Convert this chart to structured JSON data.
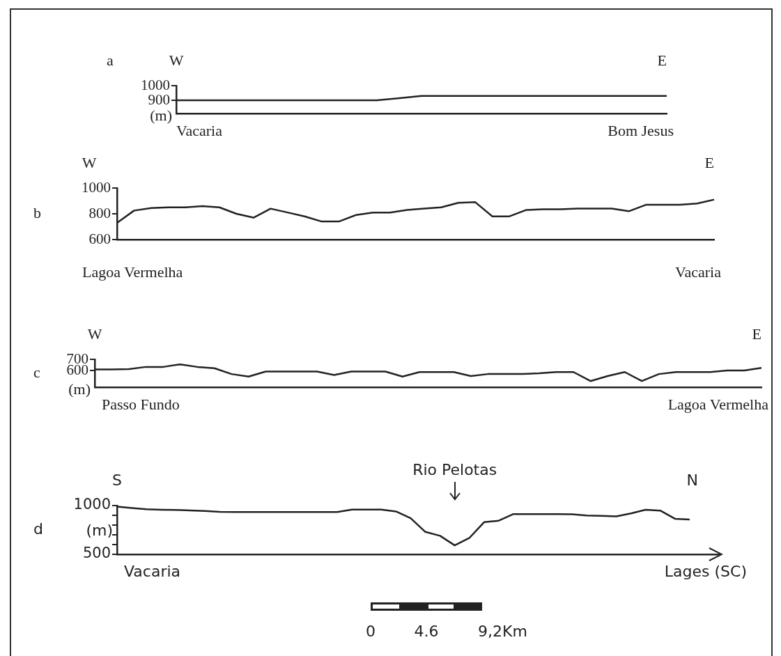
{
  "chart_data": [
    {
      "type": "line",
      "title": "a",
      "ylabel": "(m)",
      "color": "#222222",
      "ylim": [
        810,
        1000
      ],
      "yticks": [
        900,
        1000
      ],
      "grid": false,
      "legend": false,
      "tick_labels": "y",
      "annotations": [
        "W",
        "E",
        "Vacaria",
        "Bom Jesus"
      ],
      "categories": [
        null,
        null,
        null,
        null,
        null,
        null,
        null,
        null,
        null,
        null,
        null,
        null,
        null,
        null,
        null,
        null,
        null,
        null,
        null,
        null,
        null,
        null,
        null
      ],
      "values": [
        900,
        900,
        900,
        900,
        900,
        900,
        900,
        900,
        900,
        900,
        915,
        930,
        930,
        930,
        930,
        930,
        930,
        930,
        930,
        930,
        930,
        930,
        930
      ]
    },
    {
      "type": "line",
      "title": "b",
      "color": "#222222",
      "ylim": [
        600,
        1000
      ],
      "yticks": [
        600,
        800,
        1000
      ],
      "grid": false,
      "legend": false,
      "tick_labels": "y",
      "annotations": [
        "W",
        "E",
        "Lagoa Vermelha",
        "Vacaria"
      ],
      "categories": [
        null,
        null,
        null,
        null,
        null,
        null,
        null,
        null,
        null,
        null,
        null,
        null,
        null,
        null,
        null,
        null,
        null,
        null,
        null,
        null,
        null,
        null,
        null,
        null,
        null,
        null,
        null,
        null,
        null,
        null,
        null,
        null,
        null,
        null,
        null,
        null
      ],
      "values": [
        730,
        825,
        845,
        850,
        850,
        860,
        850,
        800,
        770,
        840,
        810,
        780,
        740,
        740,
        790,
        810,
        810,
        830,
        840,
        850,
        885,
        890,
        780,
        780,
        830,
        835,
        835,
        840,
        840,
        840,
        820,
        870,
        870,
        870,
        880,
        910
      ]
    },
    {
      "type": "line",
      "title": "c",
      "ylabel": "(m)",
      "color": "#222222",
      "ylim": [
        450,
        700
      ],
      "yticks": [
        600,
        700
      ],
      "grid": false,
      "legend": false,
      "tick_labels": "y",
      "annotations": [
        "W",
        "E",
        "Passo Fundo",
        "Lagoa Vermelha"
      ],
      "categories": [
        null,
        null,
        null,
        null,
        null,
        null,
        null,
        null,
        null,
        null,
        null,
        null,
        null,
        null,
        null,
        null,
        null,
        null,
        null,
        null,
        null,
        null,
        null,
        null,
        null,
        null,
        null,
        null,
        null,
        null,
        null,
        null,
        null,
        null,
        null,
        null,
        null,
        null,
        null,
        null
      ],
      "values": [
        610,
        610,
        612,
        632,
        632,
        655,
        632,
        620,
        568,
        545,
        591,
        591,
        591,
        591,
        559,
        591,
        591,
        591,
        545,
        586,
        586,
        586,
        550,
        568,
        568,
        568,
        575,
        586,
        586,
        505,
        550,
        586,
        505,
        568,
        586,
        586,
        586,
        600,
        600,
        623
      ]
    },
    {
      "type": "line",
      "title": "d",
      "ylabel": "(m)",
      "color": "#222222",
      "ylim": [
        500,
        1000
      ],
      "yticks": [
        500,
        {
          "value": 600,
          "label": null
        },
        {
          "value": 700,
          "label": null
        },
        {
          "value": 800,
          "label": null
        },
        {
          "value": 900,
          "label": null
        },
        1000
      ],
      "grid": false,
      "legend": false,
      "tick_labels": "y",
      "annotations": [
        "S",
        "N",
        "Vacaria",
        "Lages (SC)",
        "Rio Pelotas",
        "0",
        "4.6",
        "9,2Km"
      ],
      "categories": [
        null,
        null,
        null,
        null,
        null,
        null,
        null,
        null,
        null,
        null,
        null,
        null,
        null,
        null,
        null,
        null,
        null,
        null,
        null,
        null,
        null,
        null,
        null,
        null,
        null,
        null,
        null,
        null,
        null,
        null,
        null,
        null,
        null,
        null,
        null,
        null,
        null,
        null,
        null,
        null,
        null,
        null
      ],
      "values": [
        990,
        975,
        962,
        958,
        955,
        950,
        945,
        935,
        934,
        934,
        934,
        934,
        934,
        934,
        934,
        934,
        959,
        959,
        959,
        940,
        870,
        730,
        690,
        592,
        668,
        830,
        845,
        913,
        913,
        913,
        913,
        910,
        898,
        895,
        890,
        920,
        957,
        949,
        865,
        857,
        null,
        null
      ]
    }
  ]
}
